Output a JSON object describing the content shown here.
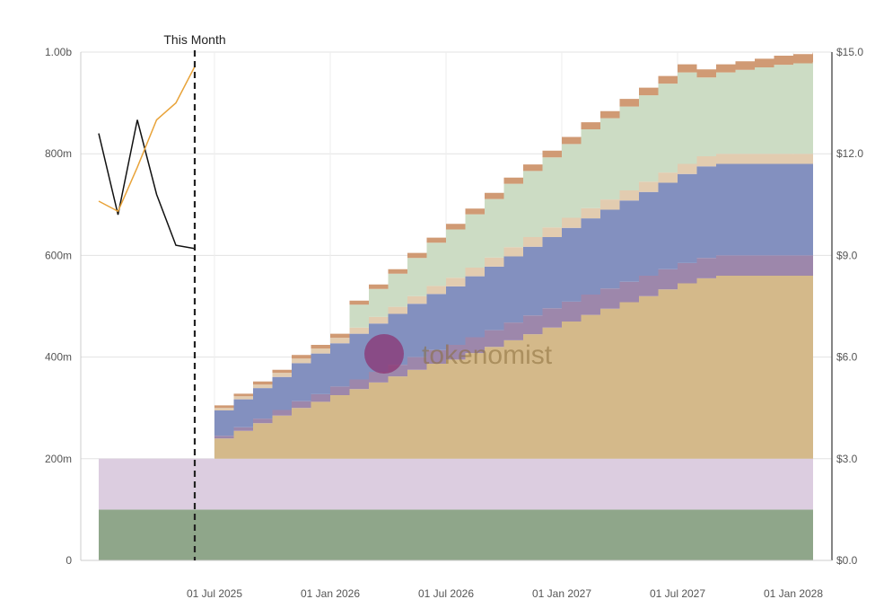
{
  "chart_data": {
    "type": "area",
    "stacking": "stepped-stacked",
    "marker": {
      "label": "This Month",
      "x": "01 Jul 2025"
    },
    "watermark": "tokenomist",
    "x_axis": {
      "ticks": [
        "01 Jul 2025",
        "01 Jan 2026",
        "01 Jul 2026",
        "01 Jan 2027",
        "01 Jul 2027",
        "01 Jan 2028"
      ]
    },
    "y_left": {
      "min": 0,
      "max": 1000000000,
      "ticks": [
        "0",
        "200m",
        "400m",
        "600m",
        "800m",
        "1.00b"
      ]
    },
    "y_right": {
      "min": 0,
      "max": 15,
      "ticks": [
        "$0.0",
        "$3.0",
        "$6.0",
        "$9.0",
        "$12.0",
        "$15.0"
      ]
    },
    "x_months": [
      "2025-01",
      "2025-02",
      "2025-03",
      "2025-04",
      "2025-05",
      "2025-06",
      "2025-07",
      "2025-08",
      "2025-09",
      "2025-10",
      "2025-11",
      "2025-12",
      "2026-01",
      "2026-02",
      "2026-03",
      "2026-04",
      "2026-05",
      "2026-06",
      "2026-07",
      "2026-08",
      "2026-09",
      "2026-10",
      "2026-11",
      "2026-12",
      "2027-01",
      "2027-02",
      "2027-03",
      "2027-04",
      "2027-05",
      "2027-06",
      "2027-07",
      "2027-08",
      "2027-09",
      "2027-10",
      "2027-11",
      "2027-12",
      "2028-01",
      "2028-02"
    ],
    "series": [
      {
        "color": "#8fa68a",
        "values": [
          100000000,
          100000000,
          100000000,
          100000000,
          100000000,
          100000000,
          100000000,
          100000000,
          100000000,
          100000000,
          100000000,
          100000000,
          100000000,
          100000000,
          100000000,
          100000000,
          100000000,
          100000000,
          100000000,
          100000000,
          100000000,
          100000000,
          100000000,
          100000000,
          100000000,
          100000000,
          100000000,
          100000000,
          100000000,
          100000000,
          100000000,
          100000000,
          100000000,
          100000000,
          100000000,
          100000000,
          100000000,
          100000000
        ]
      },
      {
        "color": "#dccde0",
        "values": [
          100000000,
          100000000,
          100000000,
          100000000,
          100000000,
          100000000,
          100000000,
          100000000,
          100000000,
          100000000,
          100000000,
          100000000,
          100000000,
          100000000,
          100000000,
          100000000,
          100000000,
          100000000,
          100000000,
          100000000,
          100000000,
          100000000,
          100000000,
          100000000,
          100000000,
          100000000,
          100000000,
          100000000,
          100000000,
          100000000,
          100000000,
          100000000,
          100000000,
          100000000,
          100000000,
          100000000,
          100000000,
          100000000
        ]
      },
      {
        "color": "#d4b98a",
        "values": [
          null,
          null,
          null,
          null,
          null,
          null,
          40000000,
          55000000,
          70000000,
          85000000,
          100000000,
          112000000,
          125000000,
          137000000,
          150000000,
          162000000,
          175000000,
          187000000,
          195000000,
          208000000,
          220000000,
          233000000,
          245000000,
          258000000,
          270000000,
          283000000,
          295000000,
          308000000,
          320000000,
          333000000,
          345000000,
          355000000,
          360000000,
          360000000,
          360000000,
          360000000,
          360000000,
          360000000
        ]
      },
      {
        "color": "#9d87ab",
        "values": [
          null,
          null,
          null,
          null,
          null,
          null,
          5000000,
          7000000,
          9000000,
          11000000,
          13000000,
          15000000,
          17000000,
          19000000,
          21000000,
          23000000,
          25000000,
          27000000,
          29000000,
          31000000,
          33000000,
          35000000,
          37000000,
          38000000,
          39000000,
          40000000,
          40000000,
          40000000,
          40000000,
          40000000,
          40000000,
          40000000,
          40000000,
          40000000,
          40000000,
          40000000,
          40000000,
          40000000
        ]
      },
      {
        "color": "#8390bf",
        "values": [
          null,
          null,
          null,
          null,
          null,
          null,
          50000000,
          55000000,
          60000000,
          65000000,
          75000000,
          80000000,
          85000000,
          90000000,
          95000000,
          100000000,
          105000000,
          110000000,
          115000000,
          120000000,
          125000000,
          130000000,
          135000000,
          140000000,
          145000000,
          150000000,
          155000000,
          160000000,
          165000000,
          170000000,
          175000000,
          180000000,
          180000000,
          180000000,
          180000000,
          180000000,
          180000000,
          180000000
        ]
      },
      {
        "color": "#e2ccb0",
        "values": [
          null,
          null,
          null,
          null,
          null,
          null,
          5000000,
          6000000,
          7000000,
          8000000,
          9000000,
          10000000,
          11000000,
          12000000,
          13000000,
          14000000,
          15000000,
          16000000,
          17000000,
          17000000,
          18000000,
          18000000,
          19000000,
          19000000,
          20000000,
          20000000,
          20000000,
          20000000,
          20000000,
          20000000,
          20000000,
          20000000,
          20000000,
          20000000,
          20000000,
          20000000,
          20000000,
          20000000
        ]
      },
      {
        "color": "#ccdcc4",
        "values": [
          null,
          null,
          null,
          null,
          null,
          null,
          0,
          0,
          0,
          0,
          0,
          0,
          0,
          45000000,
          55000000,
          65000000,
          75000000,
          85000000,
          95000000,
          105000000,
          115000000,
          125000000,
          130000000,
          138000000,
          145000000,
          155000000,
          160000000,
          165000000,
          170000000,
          175000000,
          180000000,
          155000000,
          160000000,
          165000000,
          170000000,
          175000000,
          178000000,
          180000000
        ]
      },
      {
        "color": "#d09a74",
        "values": [
          null,
          null,
          null,
          null,
          null,
          null,
          5000000,
          5000000,
          6000000,
          6000000,
          7000000,
          7000000,
          8000000,
          8000000,
          9000000,
          9000000,
          10000000,
          10000000,
          11000000,
          11000000,
          12000000,
          12000000,
          13000000,
          13000000,
          14000000,
          14000000,
          14000000,
          15000000,
          15000000,
          15000000,
          16000000,
          16000000,
          16000000,
          17000000,
          17000000,
          18000000,
          18000000,
          19000000
        ]
      }
    ],
    "lines": [
      {
        "color": "#111111",
        "axis": "right",
        "values": [
          12.6,
          10.2,
          13.0,
          10.8,
          9.3,
          9.2
        ]
      },
      {
        "color": "#e8a33a",
        "axis": "right",
        "values": [
          10.6,
          10.3,
          11.6,
          13.0,
          13.5,
          14.6
        ]
      }
    ]
  }
}
